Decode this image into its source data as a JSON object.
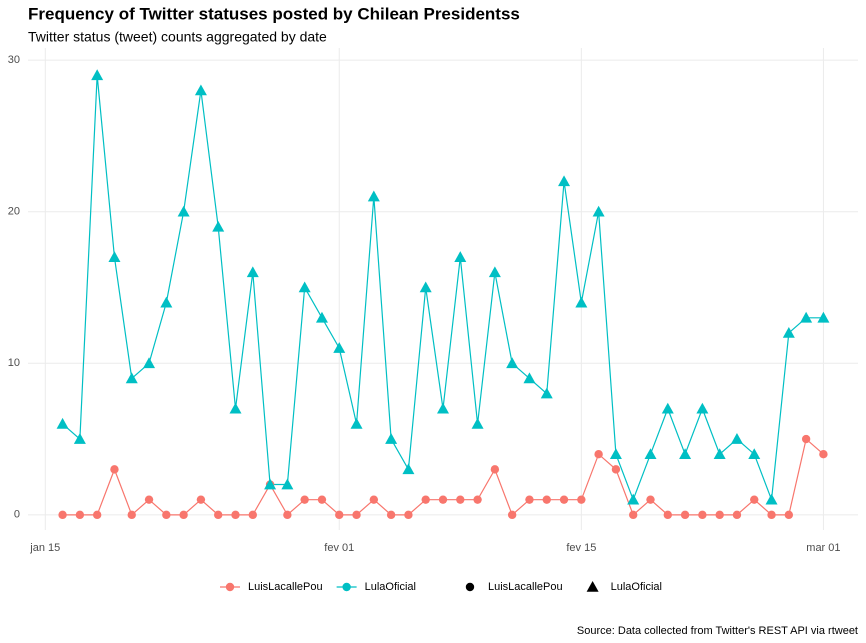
{
  "chart_data": {
    "type": "line",
    "title": "Frequency of Twitter statuses posted by Chilean Presidentss",
    "subtitle": "Twitter status (tweet) counts aggregated by date",
    "caption": "Source: Data collected from Twitter's REST API via rtweet",
    "x": [
      "01-16",
      "01-17",
      "01-18",
      "01-19",
      "01-20",
      "01-21",
      "01-22",
      "01-23",
      "01-24",
      "01-25",
      "01-26",
      "01-27",
      "01-28",
      "01-29",
      "01-30",
      "01-31",
      "02-01",
      "02-02",
      "02-03",
      "02-04",
      "02-05",
      "02-06",
      "02-07",
      "02-08",
      "02-09",
      "02-10",
      "02-11",
      "02-12",
      "02-13",
      "02-14",
      "02-15",
      "02-16",
      "02-17",
      "02-18",
      "02-19",
      "02-20",
      "02-21",
      "02-22",
      "02-23",
      "02-24",
      "02-25",
      "02-26",
      "02-27",
      "02-28",
      "03-01"
    ],
    "series": [
      {
        "name": "LuisLacallePou",
        "color": "#f8766d",
        "marker": "circle",
        "values": [
          0,
          0,
          0,
          3,
          0,
          1,
          0,
          0,
          1,
          0,
          0,
          0,
          2,
          0,
          1,
          1,
          0,
          0,
          1,
          0,
          0,
          1,
          1,
          1,
          1,
          3,
          0,
          1,
          1,
          1,
          1,
          4,
          3,
          0,
          1,
          0,
          0,
          0,
          0,
          0,
          1,
          0,
          0,
          5,
          4
        ]
      },
      {
        "name": "LulaOficial",
        "color": "#00bfc4",
        "marker": "triangle",
        "values": [
          6,
          5,
          29,
          17,
          9,
          10,
          14,
          20,
          28,
          19,
          7,
          16,
          2,
          2,
          15,
          13,
          11,
          6,
          21,
          5,
          3,
          15,
          7,
          17,
          6,
          16,
          10,
          9,
          8,
          22,
          14,
          20,
          4,
          1,
          4,
          7,
          4,
          7,
          4,
          5,
          4,
          1,
          12,
          13,
          13
        ]
      }
    ],
    "xlim": [
      "01-14",
      "03-03"
    ],
    "xticks": [
      {
        "value": "01-15",
        "label": "jan 15"
      },
      {
        "value": "02-01",
        "label": "fev 01"
      },
      {
        "value": "02-15",
        "label": "fev 15"
      },
      {
        "value": "03-01",
        "label": "mar 01"
      }
    ],
    "ylim": [
      -1,
      30.8
    ],
    "yticks": [
      0,
      10,
      20,
      30
    ],
    "grid": true,
    "legend": "bottom"
  }
}
